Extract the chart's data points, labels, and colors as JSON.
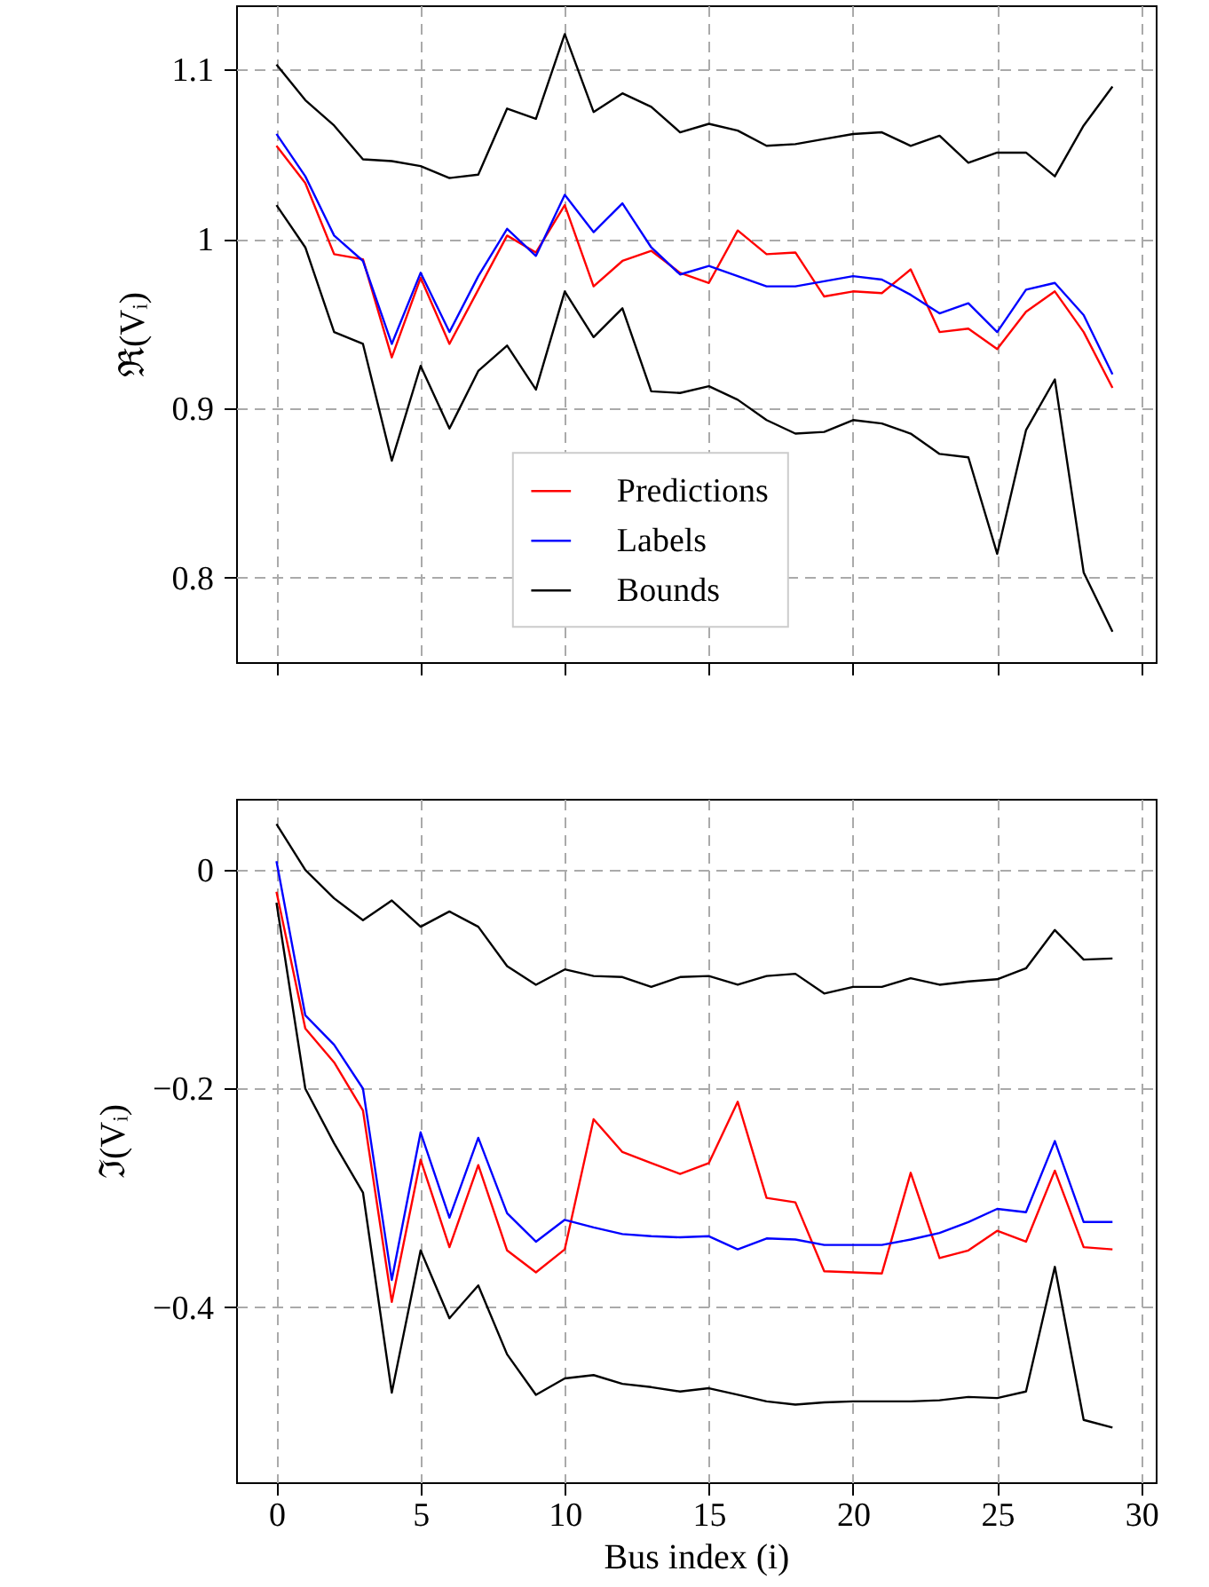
{
  "chart_data": [
    {
      "type": "line",
      "ylabel": "ℜ(Vᵢ)",
      "x": [
        0,
        1,
        2,
        3,
        4,
        5,
        6,
        7,
        8,
        9,
        10,
        11,
        12,
        13,
        14,
        15,
        16,
        17,
        18,
        19,
        20,
        21,
        22,
        23,
        24,
        25,
        26,
        27,
        28,
        29
      ],
      "xlim": [
        -1.4,
        30.5
      ],
      "xticks": [
        0,
        5,
        10,
        15,
        20,
        25,
        30
      ],
      "ylim": [
        0.75,
        1.138
      ],
      "yticks": [
        0.8,
        0.9,
        1,
        1.1
      ],
      "tick_labels": "y",
      "grid": true,
      "legend": "bottom",
      "line_style": "solid",
      "marker": "none",
      "series": [
        {
          "name": "Predictions",
          "color": "#ff0000",
          "values": [
            1.055,
            1.033,
            0.991,
            0.988,
            0.93,
            0.977,
            0.938,
            0.97,
            1.002,
            0.992,
            1.02,
            0.972,
            0.987,
            0.993,
            0.98,
            0.974,
            1.005,
            0.991,
            0.992,
            0.966,
            0.969,
            0.968,
            0.982,
            0.945,
            0.947,
            0.935,
            0.957,
            0.969,
            0.945,
            0.912
          ]
        },
        {
          "name": "Labels",
          "color": "#0000ff",
          "values": [
            1.062,
            1.037,
            1.002,
            0.987,
            0.938,
            0.98,
            0.945,
            0.978,
            1.006,
            0.99,
            1.026,
            1.004,
            1.021,
            0.995,
            0.979,
            0.984,
            0.978,
            0.972,
            0.972,
            0.975,
            0.978,
            0.976,
            0.967,
            0.956,
            0.962,
            0.945,
            0.97,
            0.974,
            0.955,
            0.92
          ]
        },
        {
          "name": "Bounds",
          "color": "#000000",
          "values": [
            1.103,
            1.082,
            1.067,
            1.047,
            1.046,
            1.043,
            1.036,
            1.038,
            1.077,
            1.071,
            1.121,
            1.075,
            1.086,
            1.078,
            1.063,
            1.068,
            1.064,
            1.055,
            1.056,
            1.059,
            1.062,
            1.063,
            1.055,
            1.061,
            1.045,
            1.051,
            1.051,
            1.037,
            1.067,
            1.09
          ]
        },
        {
          "color": "#000000",
          "values": [
            1.02,
            0.995,
            0.945,
            0.938,
            0.869,
            0.925,
            0.888,
            0.922,
            0.937,
            0.911,
            0.969,
            0.942,
            0.959,
            0.91,
            0.909,
            0.913,
            0.905,
            0.893,
            0.885,
            0.886,
            0.893,
            0.891,
            0.885,
            0.873,
            0.871,
            0.814,
            0.887,
            0.917,
            0.803,
            0.768
          ]
        }
      ]
    },
    {
      "type": "line",
      "xlabel": "Bus index (i)",
      "ylabel": "ℑ(Vᵢ)",
      "x": [
        0,
        1,
        2,
        3,
        4,
        5,
        6,
        7,
        8,
        9,
        10,
        11,
        12,
        13,
        14,
        15,
        16,
        17,
        18,
        19,
        20,
        21,
        22,
        23,
        24,
        25,
        26,
        27,
        28,
        29
      ],
      "xlim": [
        -1.4,
        30.5
      ],
      "xticks": [
        0,
        5,
        10,
        15,
        20,
        25,
        30
      ],
      "ylim": [
        -0.56,
        0.065
      ],
      "yticks": [
        {
          "value": -0.4,
          "label": "−0.4"
        },
        {
          "value": -0.2,
          "label": "−0.2"
        },
        0
      ],
      "grid": true,
      "line_style": "solid",
      "marker": "none",
      "series": [
        {
          "color": "#ff0000",
          "values": [
            -0.02,
            -0.145,
            -0.176,
            -0.22,
            -0.395,
            -0.265,
            -0.345,
            -0.27,
            -0.348,
            -0.368,
            -0.347,
            -0.228,
            -0.258,
            -0.268,
            -0.278,
            -0.268,
            -0.212,
            -0.3,
            -0.304,
            -0.367,
            -0.368,
            -0.369,
            -0.277,
            -0.355,
            -0.348,
            -0.33,
            -0.34,
            -0.275,
            -0.345,
            -0.347
          ]
        },
        {
          "color": "#0000ff",
          "values": [
            0.008,
            -0.133,
            -0.16,
            -0.2,
            -0.375,
            -0.24,
            -0.318,
            -0.245,
            -0.314,
            -0.34,
            -0.32,
            -0.327,
            -0.333,
            -0.335,
            -0.336,
            -0.335,
            -0.347,
            -0.337,
            -0.338,
            -0.343,
            -0.343,
            -0.343,
            -0.338,
            -0.332,
            -0.322,
            -0.31,
            -0.313,
            -0.248,
            -0.322,
            -0.322
          ]
        },
        {
          "color": "#000000",
          "values": [
            0.042,
            0.0,
            -0.026,
            -0.046,
            -0.028,
            -0.052,
            -0.038,
            -0.052,
            -0.088,
            -0.105,
            -0.091,
            -0.097,
            -0.098,
            -0.107,
            -0.098,
            -0.097,
            -0.105,
            -0.097,
            -0.095,
            -0.113,
            -0.107,
            -0.107,
            -0.099,
            -0.105,
            -0.102,
            -0.1,
            -0.09,
            -0.055,
            -0.082,
            -0.081
          ]
        },
        {
          "color": "#000000",
          "values": [
            -0.03,
            -0.2,
            -0.25,
            -0.295,
            -0.478,
            -0.348,
            -0.41,
            -0.38,
            -0.443,
            -0.48,
            -0.465,
            -0.462,
            -0.47,
            -0.473,
            -0.477,
            -0.474,
            -0.48,
            -0.486,
            -0.489,
            -0.487,
            -0.486,
            -0.486,
            -0.486,
            -0.485,
            -0.482,
            -0.483,
            -0.477,
            -0.363,
            -0.503,
            -0.51
          ]
        }
      ]
    }
  ]
}
